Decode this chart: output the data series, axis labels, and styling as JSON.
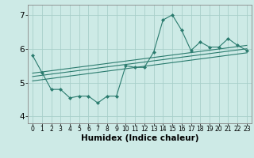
{
  "x": [
    0,
    1,
    2,
    3,
    4,
    5,
    6,
    7,
    8,
    9,
    10,
    11,
    12,
    13,
    14,
    15,
    16,
    17,
    18,
    19,
    20,
    21,
    22,
    23
  ],
  "y": [
    5.8,
    5.3,
    4.8,
    4.8,
    4.55,
    4.6,
    4.6,
    4.4,
    4.6,
    4.6,
    5.5,
    5.45,
    5.45,
    5.9,
    6.85,
    7.0,
    6.55,
    5.95,
    6.2,
    6.05,
    6.05,
    6.3,
    6.1,
    5.95
  ],
  "trend1_x": [
    0,
    23
  ],
  "trend1_y": [
    5.05,
    5.88
  ],
  "trend2_x": [
    0,
    23
  ],
  "trend2_y": [
    5.18,
    6.0
  ],
  "trend3_x": [
    0,
    23
  ],
  "trend3_y": [
    5.28,
    6.1
  ],
  "line_color": "#2a7b6e",
  "bg_color": "#cdeae6",
  "grid_color": "#a8cfca",
  "xlabel": "Humidex (Indice chaleur)",
  "ylim": [
    3.8,
    7.3
  ],
  "xlim": [
    -0.5,
    23.5
  ],
  "yticks": [
    4,
    5,
    6,
    7
  ],
  "xticks": [
    0,
    1,
    2,
    3,
    4,
    5,
    6,
    7,
    8,
    9,
    10,
    11,
    12,
    13,
    14,
    15,
    16,
    17,
    18,
    19,
    20,
    21,
    22,
    23
  ],
  "xlabel_fontsize": 7.5,
  "ytick_fontsize": 7.5,
  "xtick_fontsize": 5.5
}
